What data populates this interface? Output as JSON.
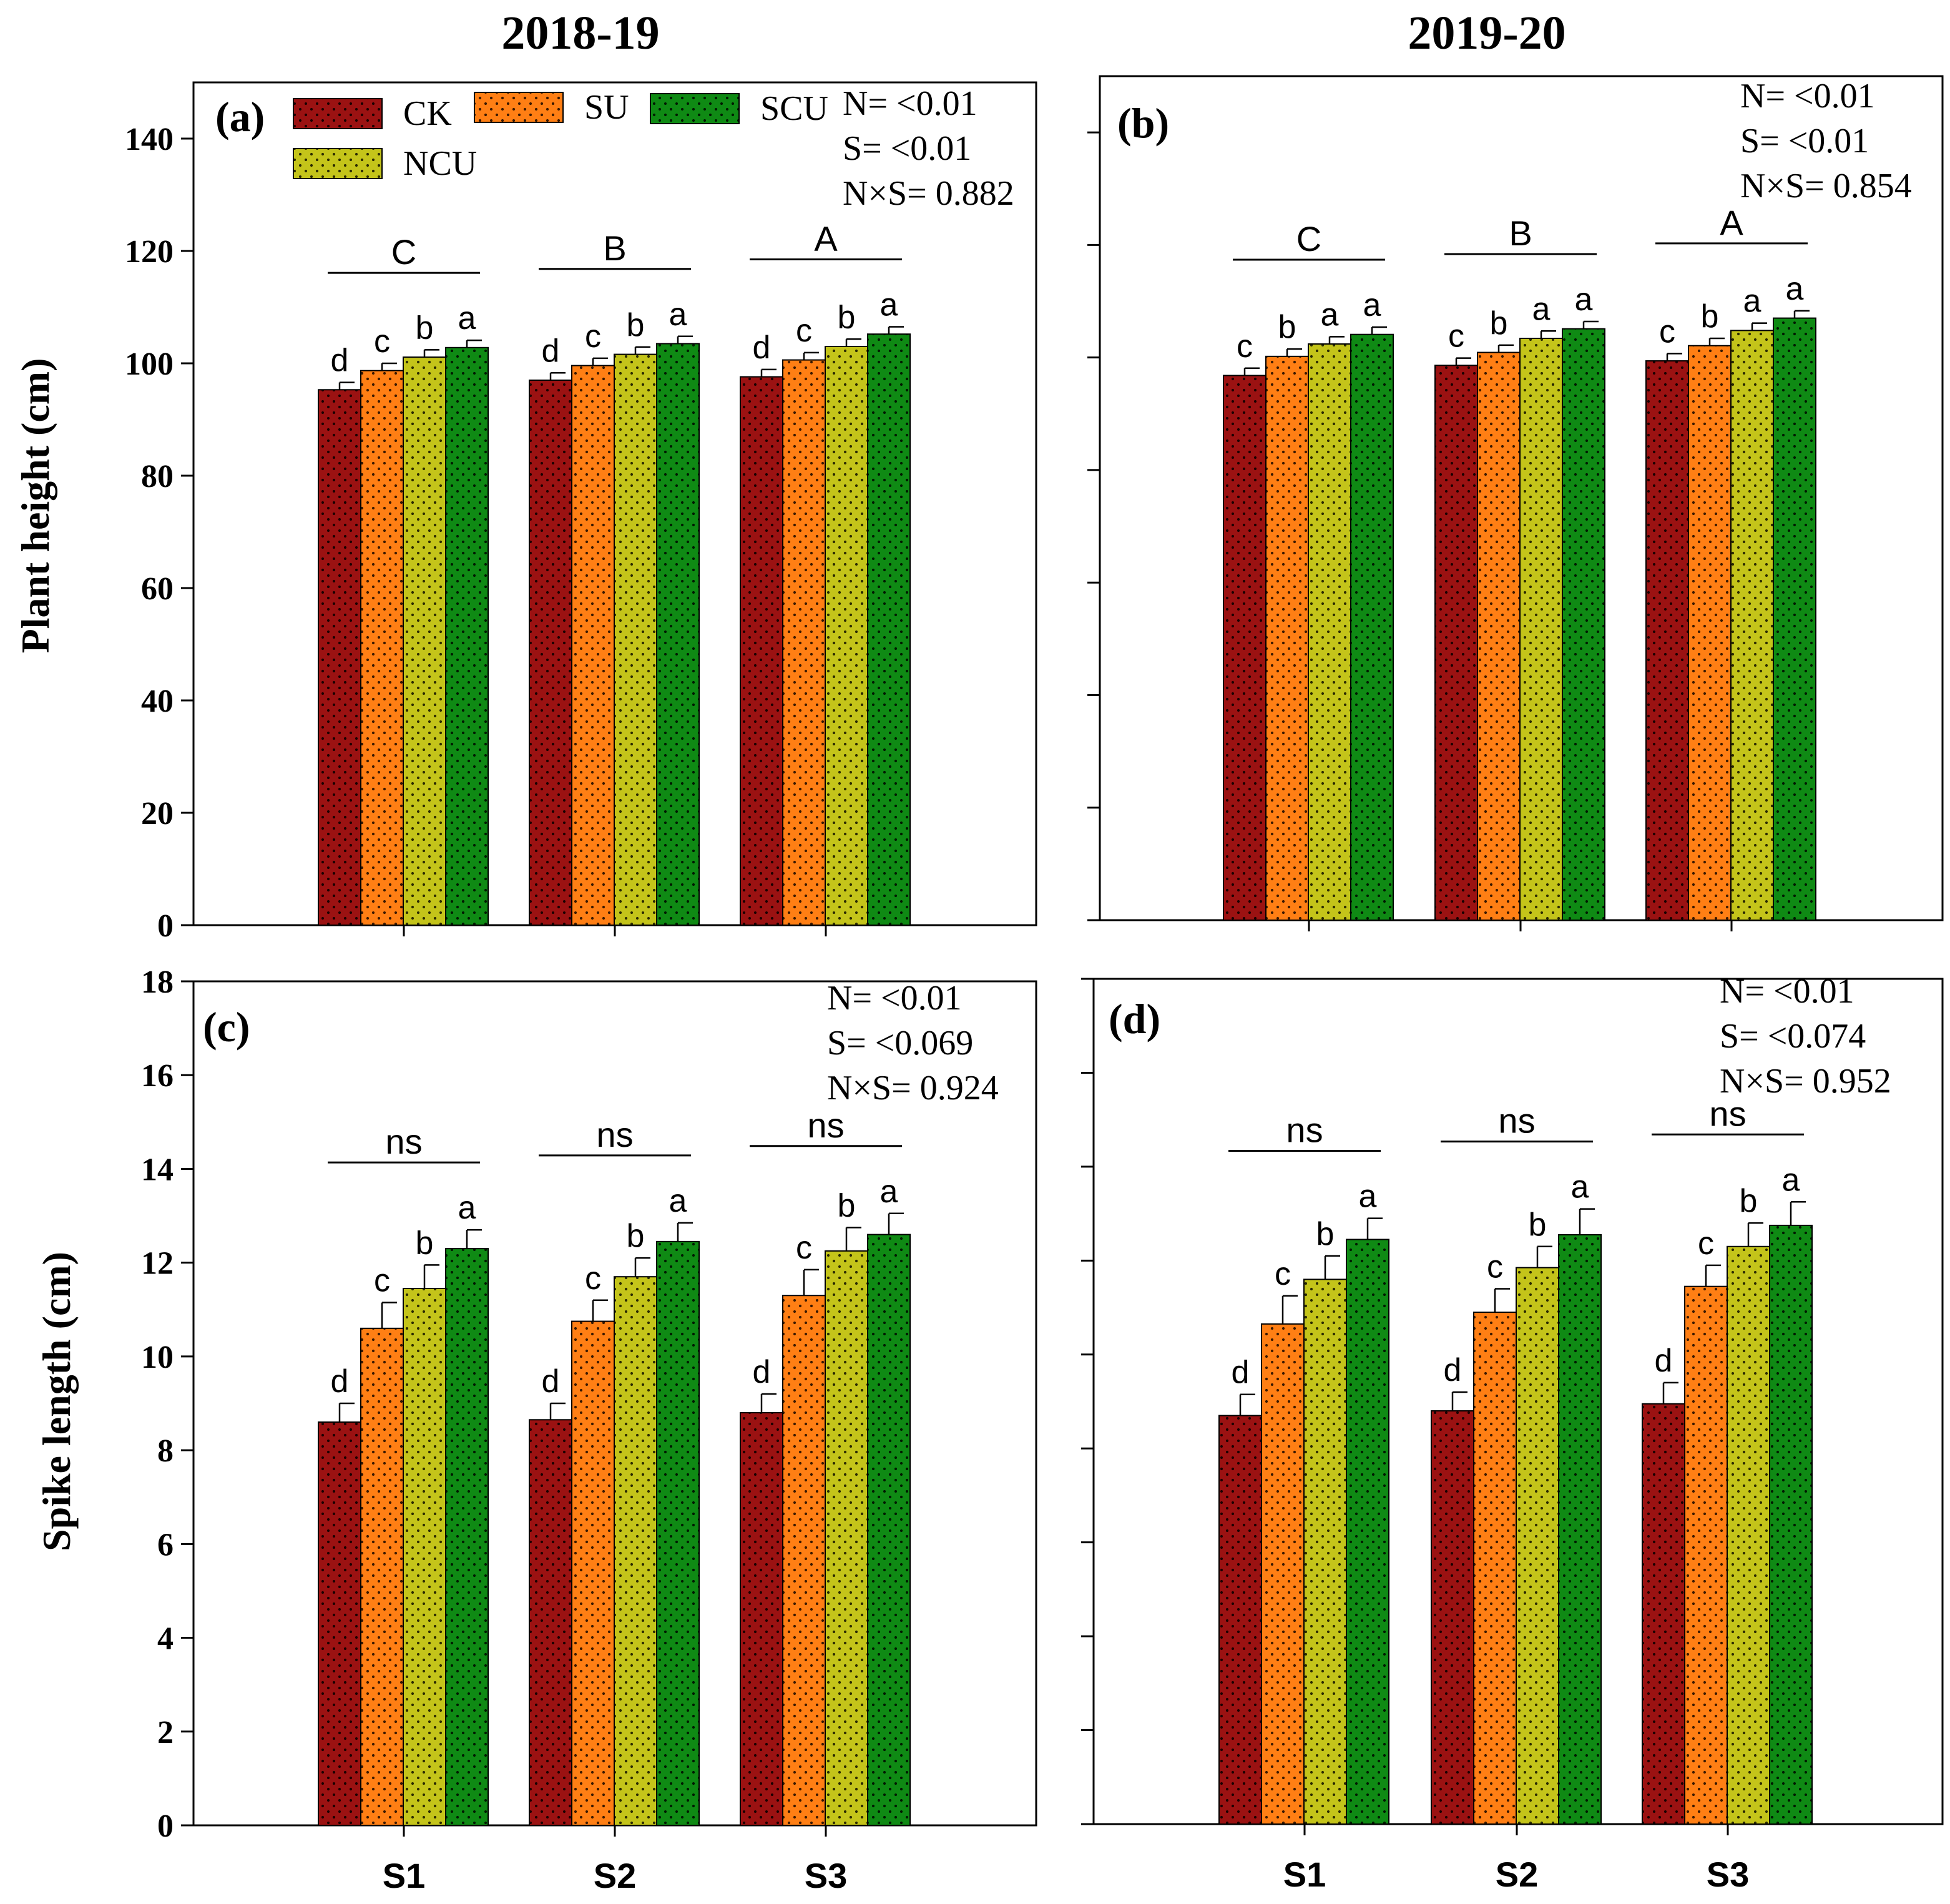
{
  "years": [
    "2018-19",
    "2019-20"
  ],
  "legend": [
    {
      "label": "CK",
      "color": "#9b1212"
    },
    {
      "label": "SU",
      "color": "#ff7f14"
    },
    {
      "label": "SCU",
      "color": "#0f8a14"
    },
    {
      "label": "NCU",
      "color": "#c4c41a"
    }
  ],
  "row_labels": [
    "Plant height (cm)",
    "Spike length (cm)"
  ],
  "chart_data": [
    {
      "type": "bar",
      "panel": "(a)",
      "year": "2018-19",
      "categories": [
        "S1",
        "S2",
        "S3"
      ],
      "ylabel": "Plant height (cm)",
      "ylim": [
        0,
        150
      ],
      "yticks": [
        0,
        20,
        40,
        60,
        80,
        100,
        120,
        140
      ],
      "show_tick_labels": true,
      "show_xtick_labels": false,
      "series": [
        {
          "name": "CK",
          "values": [
            95.3,
            97.0,
            97.6
          ],
          "errors": [
            1.3,
            1.3,
            1.3
          ],
          "letters": [
            "d",
            "d",
            "d"
          ]
        },
        {
          "name": "SU",
          "values": [
            98.7,
            99.6,
            100.6
          ],
          "errors": [
            1.3,
            1.3,
            1.3
          ],
          "letters": [
            "c",
            "c",
            "c"
          ]
        },
        {
          "name": "NCU",
          "values": [
            101.1,
            101.6,
            103.0
          ],
          "errors": [
            1.3,
            1.3,
            1.3
          ],
          "letters": [
            "b",
            "b",
            "b"
          ]
        },
        {
          "name": "SCU",
          "values": [
            102.8,
            103.5,
            105.2
          ],
          "errors": [
            1.3,
            1.3,
            1.3
          ],
          "letters": [
            "a",
            "a",
            "a"
          ]
        }
      ],
      "group_letters": [
        "C",
        "B",
        "A"
      ],
      "stats": [
        "N= <0.01",
        "S= <0.01",
        "N×S= 0.882"
      ]
    },
    {
      "type": "bar",
      "panel": "(b)",
      "year": "2019-20",
      "categories": [
        "S1",
        "S2",
        "S3"
      ],
      "ylabel": "",
      "ylim": [
        0,
        150
      ],
      "yticks": [
        0,
        20,
        40,
        60,
        80,
        100,
        120,
        140
      ],
      "show_tick_labels": false,
      "show_xtick_labels": false,
      "series": [
        {
          "name": "CK",
          "values": [
            96.8,
            98.6,
            99.4
          ],
          "errors": [
            1.3,
            1.3,
            1.3
          ],
          "letters": [
            "c",
            "c",
            "c"
          ]
        },
        {
          "name": "SU",
          "values": [
            100.2,
            100.9,
            102.1
          ],
          "errors": [
            1.3,
            1.3,
            1.3
          ],
          "letters": [
            "b",
            "b",
            "b"
          ]
        },
        {
          "name": "NCU",
          "values": [
            102.4,
            103.4,
            104.8
          ],
          "errors": [
            1.3,
            1.3,
            1.3
          ],
          "letters": [
            "a",
            "a",
            "a"
          ]
        },
        {
          "name": "SCU",
          "values": [
            104.1,
            105.1,
            107.0
          ],
          "errors": [
            1.3,
            1.3,
            1.3
          ],
          "letters": [
            "a",
            "a",
            "a"
          ]
        }
      ],
      "group_letters": [
        "C",
        "B",
        "A"
      ],
      "stats": [
        "N= <0.01",
        "S= <0.01",
        "N×S= 0.854"
      ]
    },
    {
      "type": "bar",
      "panel": "(c)",
      "year": "2018-19",
      "categories": [
        "S1",
        "S2",
        "S3"
      ],
      "ylabel": "Spike length (cm)",
      "ylim": [
        0,
        18
      ],
      "yticks": [
        0,
        2,
        4,
        6,
        8,
        10,
        12,
        14,
        16,
        18
      ],
      "show_tick_labels": true,
      "show_xtick_labels": true,
      "series": [
        {
          "name": "CK",
          "values": [
            8.6,
            8.65,
            8.8
          ],
          "errors": [
            0.4,
            0.35,
            0.4
          ],
          "letters": [
            "d",
            "d",
            "d"
          ]
        },
        {
          "name": "SU",
          "values": [
            10.6,
            10.75,
            11.3
          ],
          "errors": [
            0.55,
            0.45,
            0.55
          ],
          "letters": [
            "c",
            "c",
            "c"
          ]
        },
        {
          "name": "NCU",
          "values": [
            11.45,
            11.7,
            12.25
          ],
          "errors": [
            0.5,
            0.4,
            0.5
          ],
          "letters": [
            "b",
            "b",
            "b"
          ]
        },
        {
          "name": "SCU",
          "values": [
            12.3,
            12.45,
            12.6
          ],
          "errors": [
            0.4,
            0.4,
            0.45
          ],
          "letters": [
            "a",
            "a",
            "a"
          ]
        }
      ],
      "group_letters": [
        "ns",
        "ns",
        "ns"
      ],
      "stats": [
        "N= <0.01",
        "S= <0.069",
        "N×S= 0.924"
      ]
    },
    {
      "type": "bar",
      "panel": "(d)",
      "year": "2019-20",
      "categories": [
        "S1",
        "S2",
        "S3"
      ],
      "ylabel": "",
      "ylim": [
        0,
        18
      ],
      "yticks": [
        0,
        2,
        4,
        6,
        8,
        10,
        12,
        14,
        16,
        18
      ],
      "show_tick_labels": false,
      "show_xtick_labels": true,
      "series": [
        {
          "name": "CK",
          "values": [
            8.7,
            8.8,
            8.95
          ],
          "errors": [
            0.45,
            0.4,
            0.45
          ],
          "letters": [
            "d",
            "d",
            "d"
          ]
        },
        {
          "name": "SU",
          "values": [
            10.65,
            10.9,
            11.45
          ],
          "errors": [
            0.6,
            0.5,
            0.45
          ],
          "letters": [
            "c",
            "c",
            "c"
          ]
        },
        {
          "name": "NCU",
          "values": [
            11.6,
            11.85,
            12.3
          ],
          "errors": [
            0.5,
            0.45,
            0.5
          ],
          "letters": [
            "b",
            "b",
            "b"
          ]
        },
        {
          "name": "SCU",
          "values": [
            12.45,
            12.55,
            12.75
          ],
          "errors": [
            0.45,
            0.55,
            0.5
          ],
          "letters": [
            "a",
            "a",
            "a"
          ]
        }
      ],
      "group_letters": [
        "ns",
        "ns",
        "ns"
      ],
      "stats": [
        "N= <0.01",
        "S= <0.074",
        "N×S= 0.952"
      ]
    }
  ]
}
